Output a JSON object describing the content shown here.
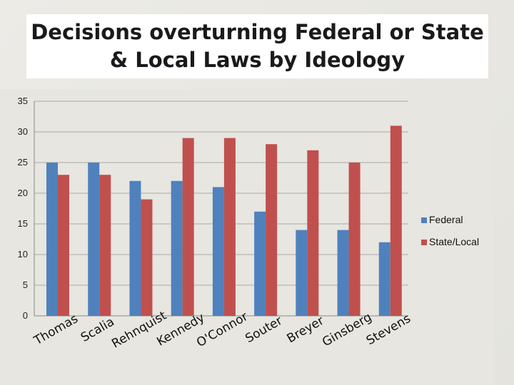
{
  "chart_data": {
    "type": "bar",
    "title_lines": [
      "Decisions overturning Federal or State",
      "& Local Laws by Ideology"
    ],
    "categories": [
      "Thomas",
      "Scalia",
      "Rehnquist",
      "Kennedy",
      "O'Connor",
      "Souter",
      "Breyer",
      "Ginsberg",
      "Stevens"
    ],
    "series": [
      {
        "name": "Federal",
        "color": "#4f81bd",
        "values": [
          25,
          25,
          22,
          22,
          21,
          17,
          14,
          14,
          12
        ]
      },
      {
        "name": "State/Local",
        "color": "#c0504d",
        "values": [
          23,
          23,
          19,
          29,
          29,
          28,
          27,
          25,
          31
        ]
      }
    ],
    "yticks": [
      0,
      5,
      10,
      15,
      20,
      25,
      30,
      35
    ],
    "ylim": [
      0,
      35
    ],
    "grid": true,
    "legend_position": "right",
    "xlabel": "",
    "ylabel": ""
  }
}
